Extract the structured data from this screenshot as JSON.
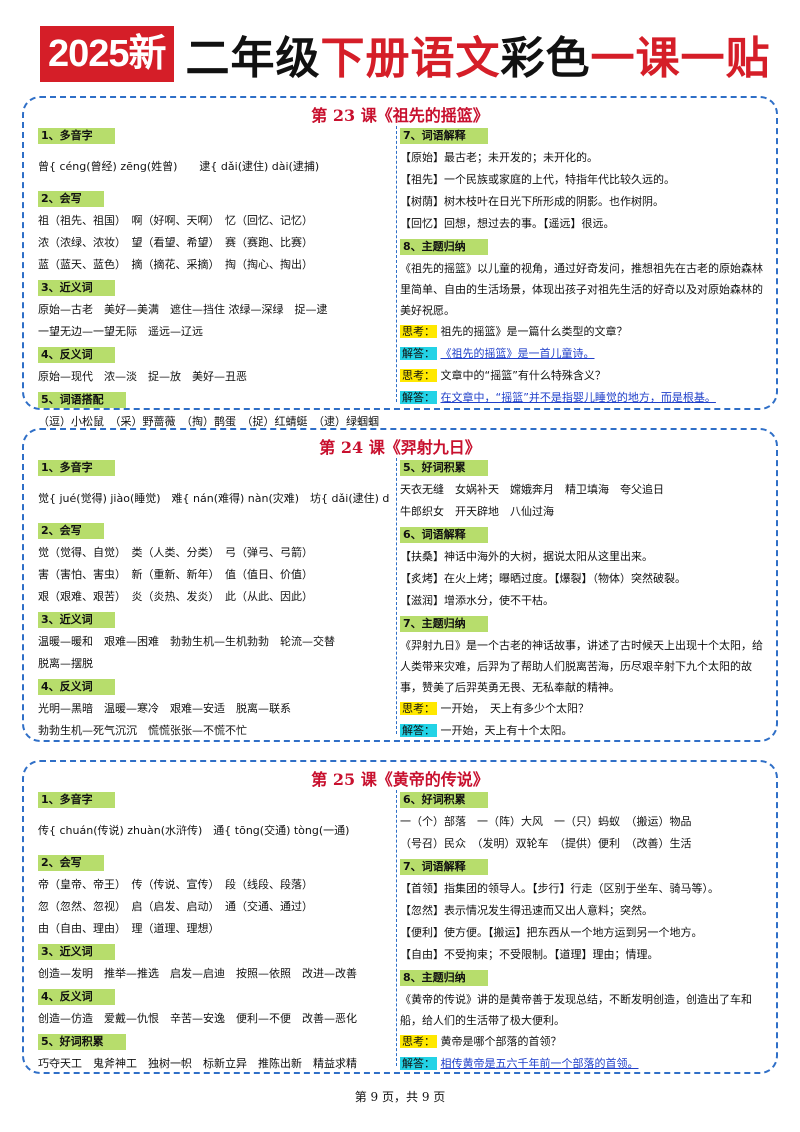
{
  "header": {
    "year_badge": "2025新",
    "title_part1": "二年级",
    "title_part2": "下册语文",
    "title_part3": "彩色",
    "title_part4": "一课一贴"
  },
  "lesson23": {
    "title": "第 23 课《祖先的摇篮》",
    "s1": "1、多音字",
    "duoyin": "曾{ céng(曾经)  zēng(姓曾)　　逮{ dǎi(逮住)  dài(逮捕)",
    "s2": "2、会写",
    "huixie": [
      "祖（祖先、祖国）　啊（好啊、天啊）　忆（回忆、记忆）",
      "浓（浓绿、浓妆）　望（看望、希望）　赛（赛跑、比赛）",
      "蓝（蓝天、蓝色）　摘（摘花、采摘）　掏（掏心、掏出）"
    ],
    "s3": "3、近义词",
    "jinyi": [
      "原始—古老　美好—美满　遮住—挡住 浓绿—深绿　捉—逮",
      "一望无边—一望无际　遥远—辽远"
    ],
    "s4": "4、反义词",
    "fanyi": "原始—现代　浓—淡　捉—放　美好—丑恶",
    "s5": "5、词语搭配",
    "dapei": "（逗）小松鼠　（采）野蔷薇　（掏）鹊蛋　（捉）红蜻蜓　（逮）绿蝈蝈",
    "s7": "7、词语解释",
    "jieshi": [
      "【原始】最古老；未开发的；未开化的。",
      "【祖先】一个民族或家庭的上代，特指年代比较久远的。",
      "【树荫】树木枝叶在日光下所形成的阴影。也作树阴。",
      "【回忆】回想，想过去的事。【遥远】很远。"
    ],
    "s8": "8、主题归纳",
    "zhuti": "《祖先的摇篮》以儿童的视角，通过好奇发问，推想祖先在古老的原始森林里简单、自由的生活场景，体现出孩子对祖先生活的好奇以及对原始森林的美好祝愿。",
    "q_label": "思考：",
    "a_label": "解答：",
    "q1": "祖先的摇篮》是一篇什么类型的文章？",
    "a1": "《祖先的摇篮》是一首儿童诗。",
    "q2": "文章中的“摇篮”有什么特殊含义？",
    "a2": "在文章中，“摇篮”并不是指婴儿睡觉的地方，而是根基。"
  },
  "lesson24": {
    "title": "第 24 课《羿射九日》",
    "s1": "1、多音字",
    "duoyin": "觉{ jué(觉得) jiào(睡觉)　难{ nán(难得) nàn(灾难)　坊{ dǎi(逮住) dài(逮捕)",
    "s2": "2、会写",
    "huixie": [
      "觉（觉得、自觉）　类（人类、分类）　弓（弹弓、弓箭）",
      "害（害怕、害虫）　新（重新、新年）　值（值日、价值）",
      "艰（艰难、艰苦）　炎（炎热、发炎）　此（从此、因此）"
    ],
    "s3": "3、近义词",
    "jinyi": [
      "温暖—暖和　艰难—困难　勃勃生机—生机勃勃　轮流—交替",
      "脱离—摆脱"
    ],
    "s4": "4、反义词",
    "fanyi": [
      "光明—黑暗　温暖—寒冷　艰难—安适　脱离—联系",
      "勃勃生机—死气沉沉　慌慌张张—不慌不忙"
    ],
    "s5": "5、好词积累",
    "haoci": [
      "天衣无缝　女娲补天　嫦娥奔月　精卫填海　夸父追日",
      "牛郎织女　开天辟地　八仙过海"
    ],
    "s6": "6、词语解释",
    "jieshi": [
      "【扶桑】神话中海外的大树，据说太阳从这里出来。",
      "【炙烤】在火上烤；曝晒过度。【爆裂】（物体）突然破裂。",
      "【滋润】增添水分，使不干枯。"
    ],
    "s7": "7、主题归纳",
    "zhuti": "《羿射九日》是一个古老的神话故事，讲述了古时候天上出现十个太阳，给人类带来灾难，后羿为了帮助人们脱离苦海，历尽艰辛射下九个太阳的故事，赞美了后羿英勇无畏、无私奉献的精神。",
    "q_label": "思考：",
    "a_label": "解答：",
    "q1": "一开始，　天上有多少个太阳？",
    "a1": "一开始，天上有十个太阳。"
  },
  "lesson25": {
    "title": "第 25 课《黄帝的传说》",
    "s1": "1、多音字",
    "duoyin": "传{ chuán(传说) zhuàn(水浒传)　通{ tōng(交通) tòng(一通)",
    "s2": "2、会写",
    "huixie": [
      "帝（皇帝、帝王）　传（传说、宣传）　段（线段、段落）",
      "忽（忽然、忽视）　启（启发、启动）　通（交通、通过）",
      "由（自由、理由）　理（道理、理想）"
    ],
    "s3": "3、近义词",
    "jinyi": "创造—发明　推举—推选　启发—启迪　按照—依照　改进—改善",
    "s4": "4、反义词",
    "fanyi": "创造—仿造　爱戴—仇恨　辛苦—安逸　便利—不便　改善—恶化",
    "s5": "5、好词积累",
    "haoci": "巧夺天工　鬼斧神工　独树一帜　标新立异　推陈出新　精益求精",
    "s6": "6、好词积累",
    "dapei": [
      "一（个）部落　一（阵）大风　一（只）蚂蚁　（搬运）物品",
      "（号召）民众　（发明）双轮车　（提供）便利　（改善）生活"
    ],
    "s7": "7、词语解释",
    "jieshi": [
      "【首领】指集团的领导人。【步行】行走（区别于坐车、骑马等）。",
      "【忽然】表示情况发生得迅速而又出人意料；突然。",
      "【便利】使方便。【搬运】把东西从一个地方运到另一个地方。",
      "【自由】不受拘束；不受限制。【道理】理由；情理。"
    ],
    "s8": "8、主题归纳",
    "zhuti": "《黄帝的传说》讲的是黄帝善于发现总结，不断发明创造，创造出了车和船，给人们的生活带了极大便利。",
    "q_label": "思考：",
    "a_label": "解答：",
    "q1": "黄帝是哪个部落的首领？",
    "a1": "相传黄帝是五六千年前一个部落的首领。"
  },
  "footer": "第 9 页，共 9 页"
}
